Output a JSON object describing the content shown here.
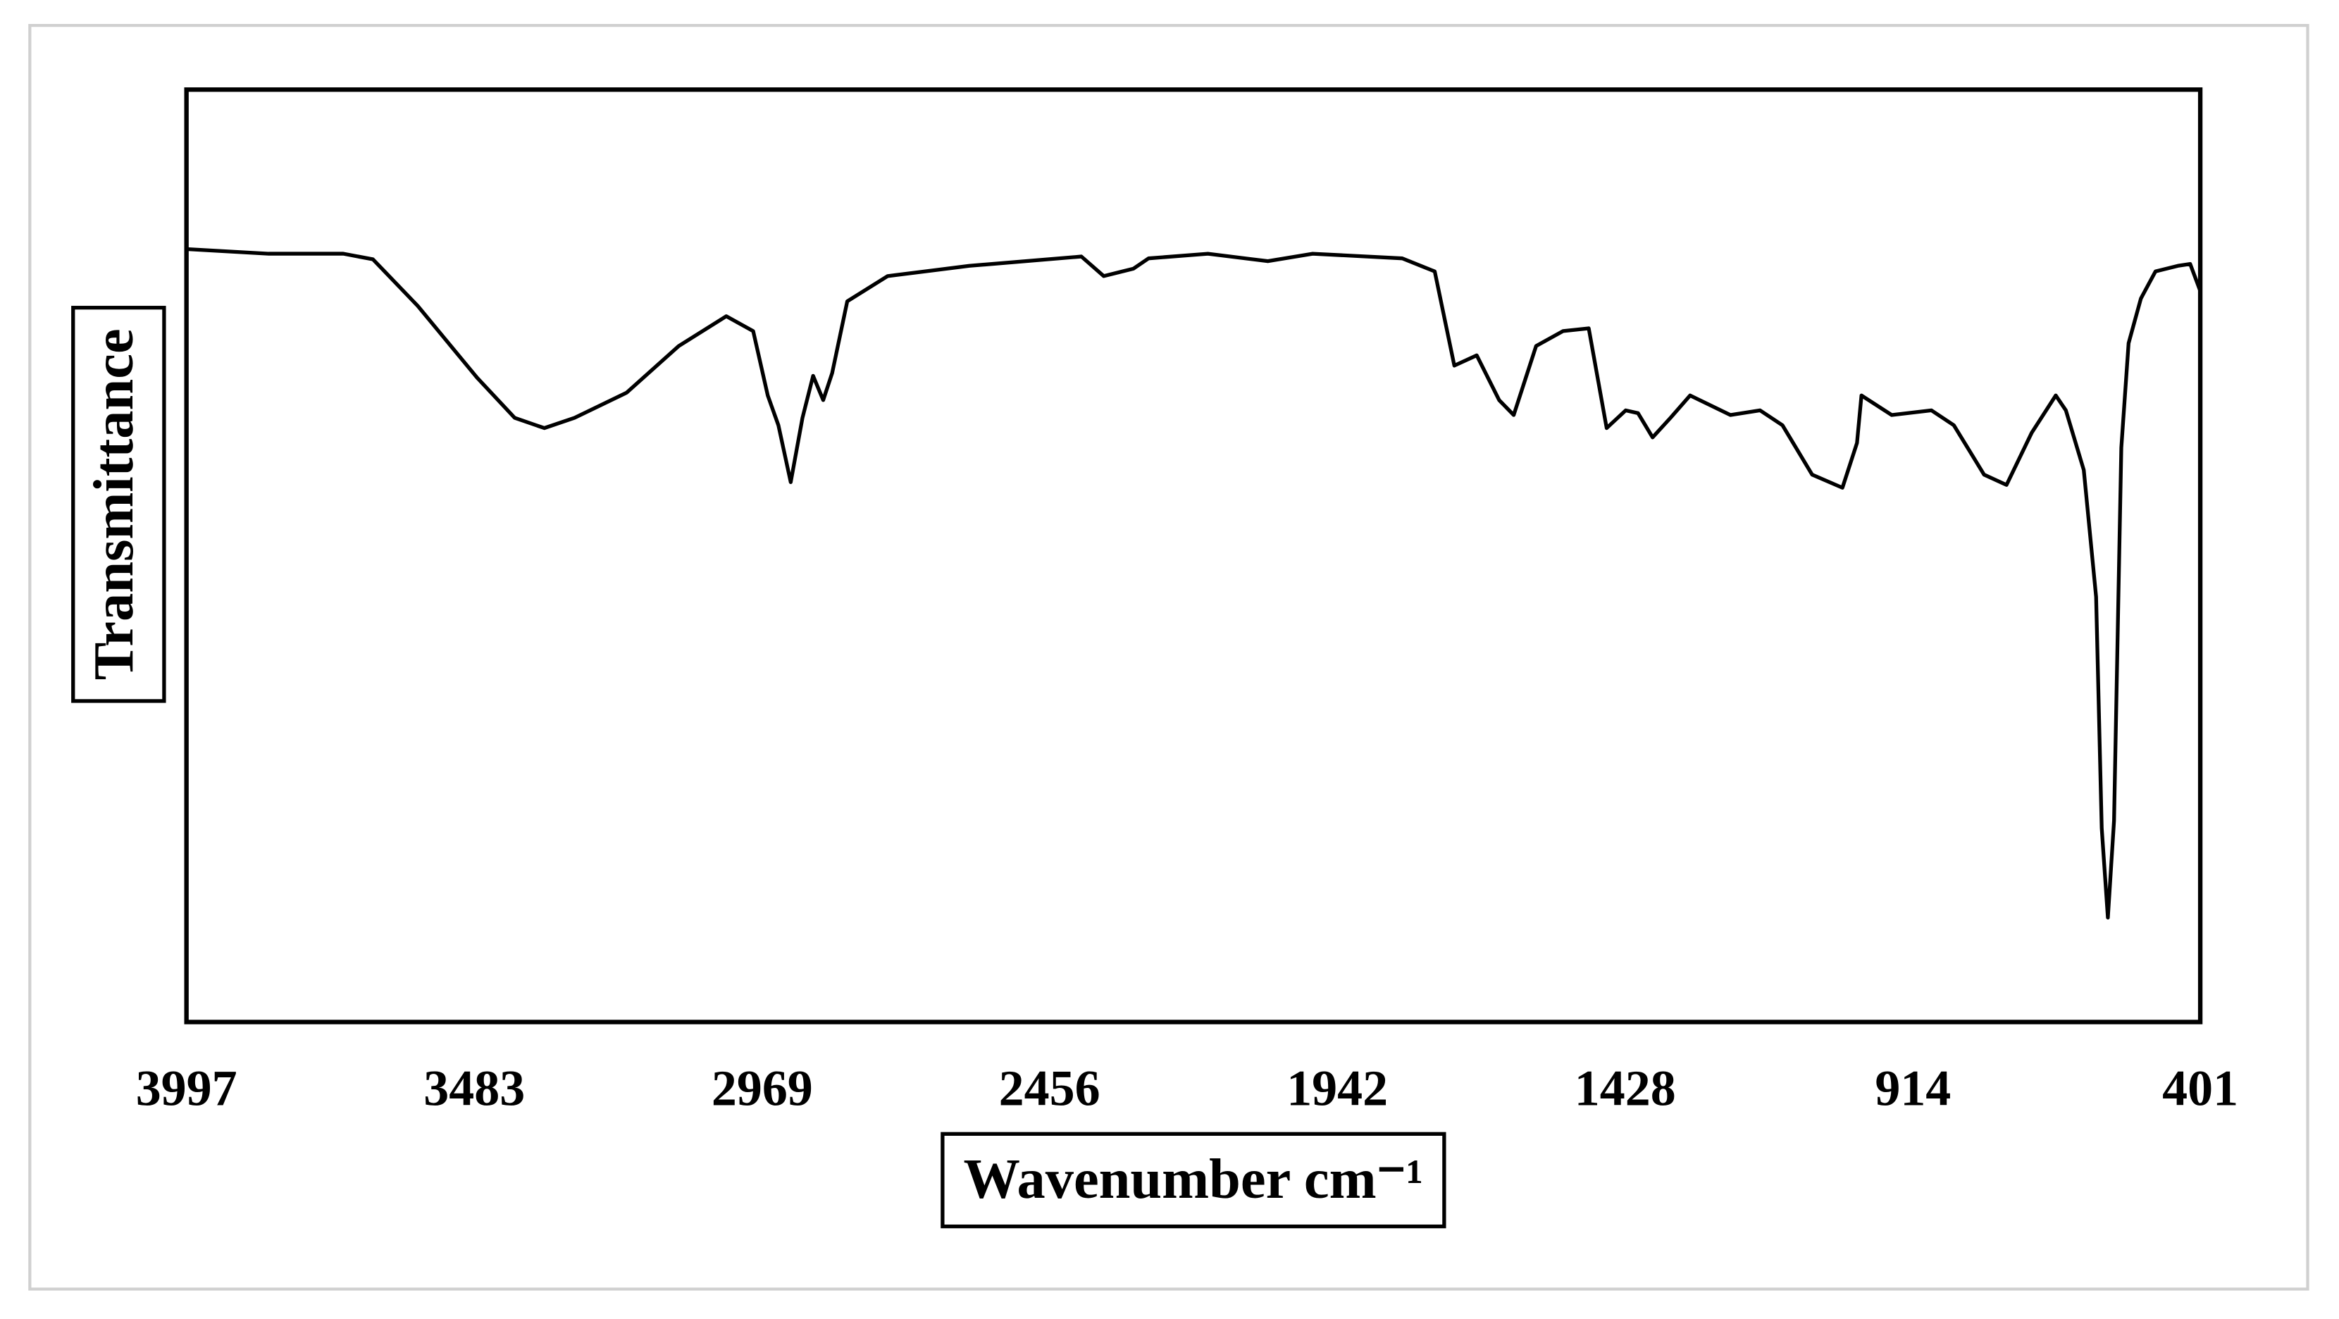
{
  "chart_data": {
    "type": "line",
    "x_label": "Wavenumber cm⁻¹",
    "y_label": "Transmittance",
    "color": "#000000",
    "grid": false,
    "xlim": [
      3997,
      401
    ],
    "xticks": [
      3997,
      3483,
      2969,
      2456,
      1942,
      1428,
      914,
      401
    ],
    "ylim": [
      0,
      100
    ],
    "x": [
      3997,
      3850,
      3717,
      3664,
      3584,
      3478,
      3411,
      3358,
      3304,
      3211,
      3118,
      3033,
      2985,
      2959,
      2940,
      2918,
      2897,
      2878,
      2860,
      2844,
      2817,
      2745,
      2599,
      2399,
      2359,
      2306,
      2279,
      2173,
      2066,
      1986,
      1826,
      1768,
      1733,
      1693,
      1653,
      1627,
      1587,
      1539,
      1493,
      1461,
      1427,
      1405,
      1379,
      1347,
      1312,
      1240,
      1187,
      1147,
      1094,
      1040,
      1014,
      1006,
      952,
      881,
      841,
      787,
      747,
      702,
      659,
      641,
      609,
      587,
      577,
      566,
      555,
      542,
      529,
      507,
      481,
      441,
      419,
      401
    ],
    "values": [
      82.9,
      82.4,
      82.4,
      81.8,
      76.8,
      69.1,
      64.8,
      63.7,
      64.8,
      67.5,
      72.5,
      75.7,
      74.1,
      67.2,
      64.0,
      57.9,
      64.8,
      69.3,
      66.7,
      69.6,
      77.3,
      80.0,
      81.1,
      82.1,
      80.0,
      80.8,
      81.9,
      82.4,
      81.6,
      82.4,
      81.9,
      80.5,
      70.4,
      71.5,
      66.7,
      65.1,
      72.5,
      74.1,
      74.4,
      63.7,
      65.6,
      65.3,
      62.7,
      64.8,
      67.2,
      65.1,
      65.6,
      64.0,
      58.7,
      57.3,
      62.1,
      67.2,
      65.1,
      65.6,
      64.0,
      58.7,
      57.6,
      63.2,
      67.2,
      65.6,
      59.2,
      45.6,
      20.8,
      11.2,
      21.6,
      61.6,
      72.8,
      77.6,
      80.5,
      81.1,
      81.3,
      78.4
    ]
  }
}
